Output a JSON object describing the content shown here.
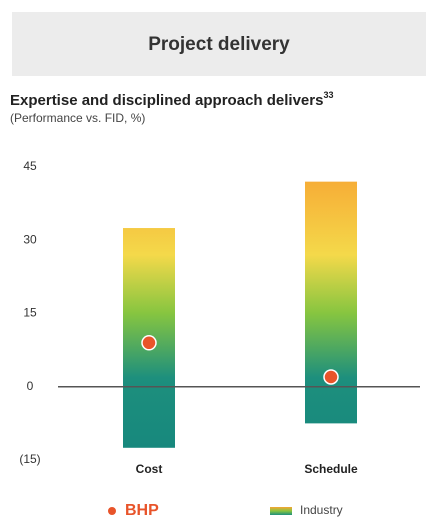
{
  "header": {
    "title": "Project delivery"
  },
  "chart_data": {
    "type": "range_bar",
    "title": "Expertise and disciplined approach delivers",
    "title_superscript": "33",
    "subtitle": "(Performance vs. FID, %)",
    "categories": [
      "Cost",
      "Schedule"
    ],
    "series": [
      {
        "name": "Industry",
        "kind": "range",
        "values": [
          [
            -12.5,
            32.5
          ],
          [
            -7.5,
            42
          ]
        ]
      },
      {
        "name": "BHP",
        "kind": "point",
        "color": "#e8542a",
        "values": [
          9,
          2
        ]
      }
    ],
    "ylim": [
      -15,
      45
    ],
    "yticks": [
      {
        "value": -15,
        "label": "(15)"
      },
      0,
      15,
      30,
      45
    ],
    "zero_line": true
  }
}
